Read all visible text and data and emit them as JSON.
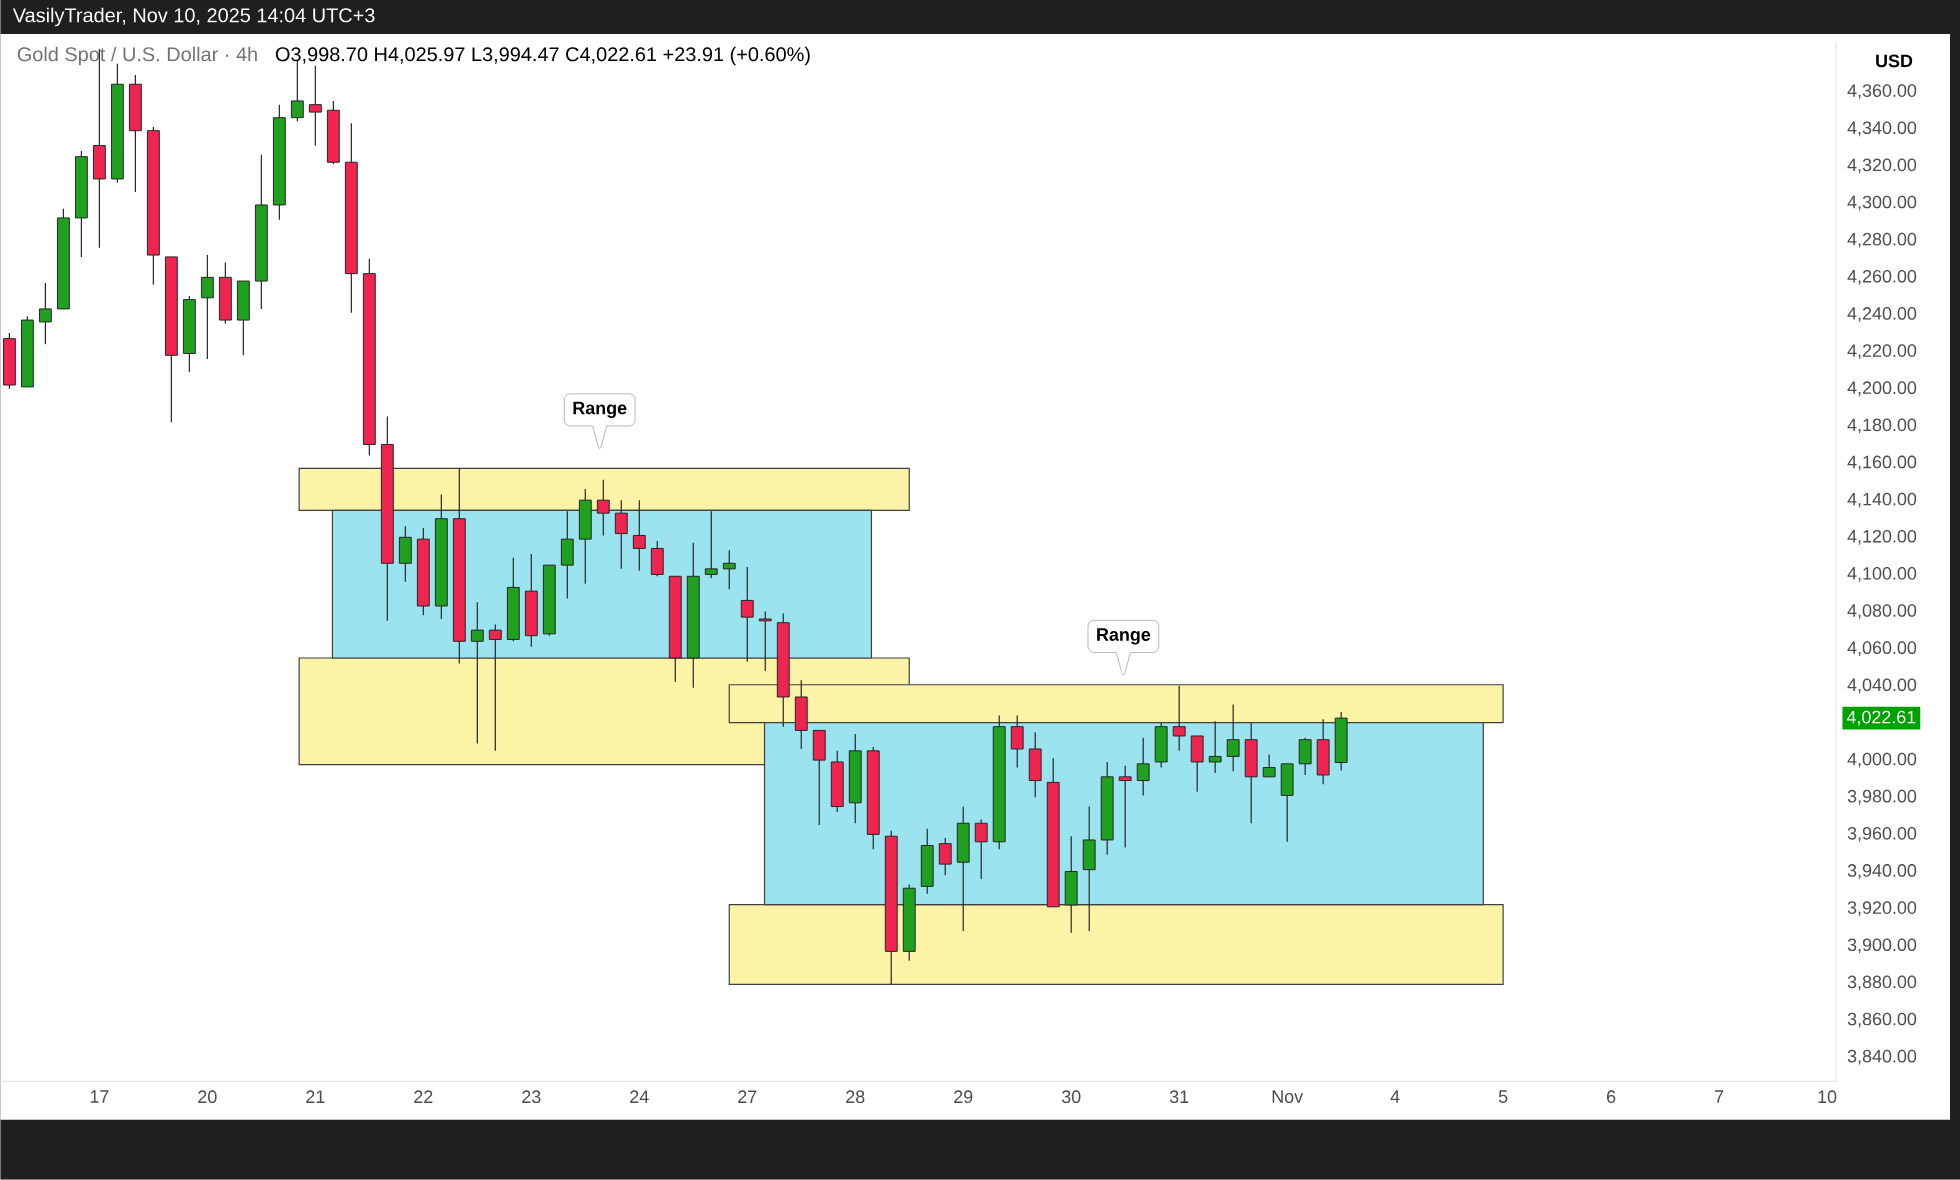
{
  "chart_data": {
    "type": "candlestick",
    "title": "Gold Spot / U.S. Dollar · 4h",
    "subtitle": "VasilyTrader, Nov 10, 2025 14:04 UTC+3",
    "ylabel": "USD",
    "annotations": [
      "O3,998.70 H4,025.97 L3,994.47 C4,022.61 +23.91 (+0.60%)",
      "Range",
      "Range",
      "4,022.61"
    ],
    "categories": [
      null,
      null,
      null,
      null,
      null,
      "17",
      null,
      null,
      null,
      null,
      null,
      "20",
      null,
      null,
      null,
      null,
      null,
      "21",
      null,
      null,
      null,
      null,
      null,
      "22",
      null,
      null,
      null,
      null,
      null,
      "23",
      null,
      null,
      null,
      null,
      null,
      "24",
      null,
      null,
      null,
      null,
      null,
      "27",
      null,
      null,
      null,
      null,
      null,
      "28",
      null,
      null,
      null,
      null,
      null,
      "29",
      null,
      null,
      null,
      null,
      null,
      "30",
      null,
      null,
      null,
      null,
      null,
      "31",
      null,
      null,
      null,
      null,
      null,
      "Nov",
      null,
      null,
      null,
      null,
      null,
      "4",
      null,
      null,
      null,
      null,
      null,
      "5",
      null,
      null,
      null,
      null,
      null,
      "6",
      null,
      null,
      null,
      null,
      null,
      "7",
      null,
      null,
      null,
      null,
      null,
      "10"
    ],
    "ohlc": [
      [
        4227,
        4230,
        4200,
        4202
      ],
      [
        4201,
        4239,
        4201,
        4237
      ],
      [
        4236,
        4257,
        4224,
        4243
      ],
      [
        4243,
        4297,
        4243,
        4292
      ],
      [
        4292,
        4328,
        4271,
        4325
      ],
      [
        4331,
        4383,
        4276,
        4313
      ],
      [
        4313,
        4375,
        4311,
        4364
      ],
      [
        4364,
        4369,
        4306,
        4339
      ],
      [
        4339,
        4341,
        4256,
        4272
      ],
      [
        4271,
        4271,
        4182,
        4218
      ],
      [
        4219,
        4250,
        4209,
        4248
      ],
      [
        4249,
        4272,
        4216,
        4260
      ],
      [
        4260,
        4268,
        4235,
        4237
      ],
      [
        4237,
        4258,
        4218,
        4258
      ],
      [
        4258,
        4326,
        4243,
        4299
      ],
      [
        4299,
        4353,
        4291,
        4346
      ],
      [
        4346,
        4377,
        4344,
        4355
      ],
      [
        4353,
        4374,
        4331,
        4349
      ],
      [
        4350,
        4355,
        4321,
        4322
      ],
      [
        4322,
        4343,
        4241,
        4262
      ],
      [
        4262,
        4270,
        4164,
        4170
      ],
      [
        4170,
        4185,
        4075,
        4106
      ],
      [
        4106,
        4126,
        4096,
        4120
      ],
      [
        4119,
        4125,
        4078,
        4083
      ],
      [
        4083,
        4143,
        4076,
        4130
      ],
      [
        4130,
        4157,
        4052,
        4064
      ],
      [
        4064,
        4085,
        4009,
        4070
      ],
      [
        4070,
        4073,
        4005,
        4065
      ],
      [
        4065,
        4109,
        4064,
        4093
      ],
      [
        4091,
        4111,
        4061,
        4067
      ],
      [
        4068,
        4105,
        4067,
        4105
      ],
      [
        4105,
        4134,
        4087,
        4119
      ],
      [
        4119,
        4146,
        4095,
        4140
      ],
      [
        4140,
        4151,
        4121,
        4133
      ],
      [
        4133,
        4140,
        4103,
        4122
      ],
      [
        4121,
        4140,
        4102,
        4114
      ],
      [
        4114,
        4118,
        4099,
        4100
      ],
      [
        4099,
        4099,
        4042,
        4055
      ],
      [
        4055,
        4117,
        4039,
        4099
      ],
      [
        4100,
        4134,
        4098,
        4103
      ],
      [
        4103,
        4113,
        4092,
        4106
      ],
      [
        4086,
        4104,
        4053,
        4077
      ],
      [
        4076,
        4080,
        4048,
        4075
      ],
      [
        4074,
        4079,
        4018,
        4034
      ],
      [
        4034,
        4043,
        4006,
        4016
      ],
      [
        4016,
        4016,
        3965,
        4000
      ],
      [
        3999,
        4005,
        3972,
        3975
      ],
      [
        3977,
        4014,
        3966,
        4005
      ],
      [
        4005,
        4007,
        3952,
        3960
      ],
      [
        3959,
        3962,
        3879,
        3897
      ],
      [
        3897,
        3933,
        3892,
        3931
      ],
      [
        3932,
        3963,
        3928,
        3954
      ],
      [
        3955,
        3958,
        3938,
        3944
      ],
      [
        3945,
        3975,
        3908,
        3966
      ],
      [
        3966,
        3968,
        3936,
        3956
      ],
      [
        3956,
        4024,
        3952,
        4018
      ],
      [
        4018,
        4024,
        3996,
        4006
      ],
      [
        4006,
        4015,
        3980,
        3989
      ],
      [
        3988,
        4001,
        3921,
        3921
      ],
      [
        3922,
        3959,
        3907,
        3940
      ],
      [
        3941,
        3975,
        3908,
        3957
      ],
      [
        3957,
        3999,
        3949,
        3991
      ],
      [
        3991,
        3997,
        3953,
        3989
      ],
      [
        3989,
        4012,
        3981,
        3998
      ],
      [
        3999,
        4020,
        3996,
        4018
      ],
      [
        4018,
        4040,
        4005,
        4013
      ],
      [
        4013,
        4013,
        3983,
        3999
      ],
      [
        3999,
        4021,
        3993,
        4002
      ],
      [
        4002,
        4030,
        3994,
        4011
      ],
      [
        4011,
        4020,
        3966,
        3991
      ],
      [
        3991,
        4003,
        3991,
        3996
      ],
      [
        3981,
        3998,
        3956,
        3998
      ],
      [
        3998,
        4012,
        3992,
        4011
      ],
      [
        4011,
        4022,
        3987,
        3992
      ],
      [
        3998.7,
        4025.97,
        3994.47,
        4022.61
      ],
      null,
      null,
      null,
      null,
      null,
      null,
      null,
      null,
      null,
      null,
      null,
      null,
      null,
      null,
      null,
      null,
      null,
      null,
      null,
      null,
      null,
      null,
      null,
      null,
      null,
      null,
      null
    ],
    "colors": [
      "#f0254f",
      "#1fa01f",
      "#1fa01f",
      "#1fa01f",
      "#1fa01f",
      "#f0254f",
      "#1fa01f",
      "#f0254f",
      "#f0254f",
      "#f0254f",
      "#1fa01f",
      "#1fa01f",
      "#f0254f",
      "#1fa01f",
      "#1fa01f",
      "#1fa01f",
      "#1fa01f",
      "#f0254f",
      "#f0254f",
      "#f0254f",
      "#f0254f",
      "#f0254f",
      "#1fa01f",
      "#f0254f",
      "#1fa01f",
      "#f0254f",
      "#1fa01f",
      "#f0254f",
      "#1fa01f",
      "#f0254f",
      "#1fa01f",
      "#1fa01f",
      "#1fa01f",
      "#f0254f",
      "#f0254f",
      "#f0254f",
      "#f0254f",
      "#f0254f",
      "#1fa01f",
      "#1fa01f",
      "#1fa01f",
      "#f0254f",
      "#f0254f",
      "#f0254f",
      "#f0254f",
      "#f0254f",
      "#f0254f",
      "#1fa01f",
      "#f0254f",
      "#f0254f",
      "#1fa01f",
      "#1fa01f",
      "#f0254f",
      "#1fa01f",
      "#f0254f",
      "#1fa01f",
      "#f0254f",
      "#f0254f",
      "#f0254f",
      "#1fa01f",
      "#1fa01f",
      "#1fa01f",
      "#f0254f",
      "#1fa01f",
      "#1fa01f",
      "#f0254f",
      "#f0254f",
      "#1fa01f",
      "#1fa01f",
      "#f0254f",
      "#1fa01f",
      "#1fa01f",
      "#1fa01f",
      "#f0254f",
      "#1fa01f",
      null,
      null,
      null,
      null,
      null,
      null,
      null,
      null,
      null,
      null,
      null,
      null,
      null,
      null,
      null,
      null,
      null,
      null,
      null,
      null,
      null,
      null,
      null,
      null,
      null,
      null,
      null
    ],
    "bands": [
      {
        "axis": "y",
        "from": 4134.5,
        "to": 4157.1,
        "color": "#fdf3a6"
      },
      {
        "axis": "y",
        "from": 3997.6,
        "to": 4055.0,
        "color": "#fdf3a6"
      },
      {
        "axis": "y",
        "from": 4055.0,
        "to": 4134.5,
        "color": "#9be3ee"
      },
      {
        "axis": "y",
        "from": 4020.2,
        "to": 4040.6,
        "color": "#fdf3a6"
      },
      {
        "axis": "y",
        "from": 3879.2,
        "to": 3922.2,
        "color": "#fdf3a6"
      },
      {
        "axis": "y",
        "from": 3922.2,
        "to": 4020.2,
        "color": "#9be3ee"
      }
    ],
    "ylim": [
      3827,
      4387
    ],
    "yticks": [
      {
        "value": 3840,
        "label": "3,840.00"
      },
      {
        "value": 3860,
        "label": "3,860.00"
      },
      {
        "value": 3880,
        "label": "3,880.00"
      },
      {
        "value": 3900,
        "label": "3,900.00"
      },
      {
        "value": 3920,
        "label": "3,920.00"
      },
      {
        "value": 3940,
        "label": "3,940.00"
      },
      {
        "value": 3960,
        "label": "3,960.00"
      },
      {
        "value": 3980,
        "label": "3,980.00"
      },
      {
        "value": 4000,
        "label": "4,000.00"
      },
      {
        "value": 4040,
        "label": "4,040.00"
      },
      {
        "value": 4060,
        "label": "4,060.00"
      },
      {
        "value": 4080,
        "label": "4,080.00"
      },
      {
        "value": 4100,
        "label": "4,100.00"
      },
      {
        "value": 4120,
        "label": "4,120.00"
      },
      {
        "value": 4140,
        "label": "4,140.00"
      },
      {
        "value": 4160,
        "label": "4,160.00"
      },
      {
        "value": 4180,
        "label": "4,180.00"
      },
      {
        "value": 4200,
        "label": "4,200.00"
      },
      {
        "value": 4220,
        "label": "4,220.00"
      },
      {
        "value": 4240,
        "label": "4,240.00"
      },
      {
        "value": 4260,
        "label": "4,260.00"
      },
      {
        "value": 4280,
        "label": "4,280.00"
      },
      {
        "value": 4300,
        "label": "4,300.00"
      },
      {
        "value": 4320,
        "label": "4,320.00"
      },
      {
        "value": 4340,
        "label": "4,340.00"
      },
      {
        "value": 4360,
        "label": "4,360.00"
      }
    ]
  }
}
